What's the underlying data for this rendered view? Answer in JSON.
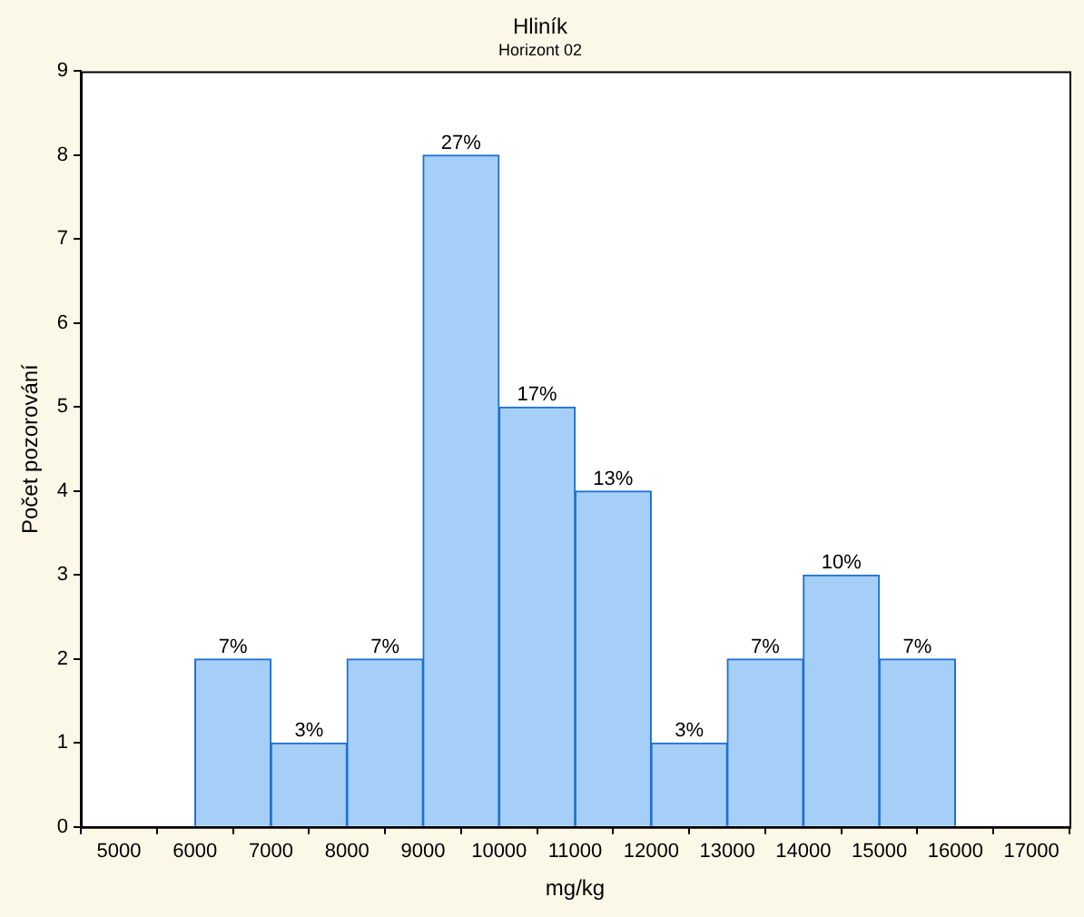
{
  "chart_data": {
    "type": "histogram",
    "title": "Hliník",
    "subtitle": "Horizont 02",
    "xlabel": "mg/kg",
    "ylabel": "Počet pozorování",
    "bins": [
      6000,
      7000,
      8000,
      9000,
      10000,
      11000,
      12000,
      13000,
      14000,
      15000,
      16000
    ],
    "values": [
      2,
      1,
      2,
      8,
      5,
      4,
      1,
      2,
      3,
      2
    ],
    "annotations": [
      {
        "text": "7%",
        "x": 6500,
        "y": 2
      },
      {
        "text": "3%",
        "x": 7500,
        "y": 1
      },
      {
        "text": "7%",
        "x": 8500,
        "y": 2
      },
      {
        "text": "27%",
        "x": 9500,
        "y": 8
      },
      {
        "text": "17%",
        "x": 10500,
        "y": 5
      },
      {
        "text": "13%",
        "x": 11500,
        "y": 4
      },
      {
        "text": "3%",
        "x": 12500,
        "y": 1
      },
      {
        "text": "7%",
        "x": 13500,
        "y": 2
      },
      {
        "text": "10%",
        "x": 14500,
        "y": 3
      },
      {
        "text": "7%",
        "x": 15500,
        "y": 2
      }
    ],
    "color": "#a6cff7",
    "xlim": [
      4500,
      17500
    ],
    "xticks": [
      5000,
      6000,
      7000,
      8000,
      9000,
      10000,
      11000,
      12000,
      13000,
      14000,
      15000,
      16000,
      17000
    ],
    "ylim": [
      0,
      9
    ],
    "yticks": [
      0,
      1,
      2,
      3,
      4,
      5,
      6,
      7,
      8,
      9
    ],
    "grid": false,
    "legend": false
  }
}
